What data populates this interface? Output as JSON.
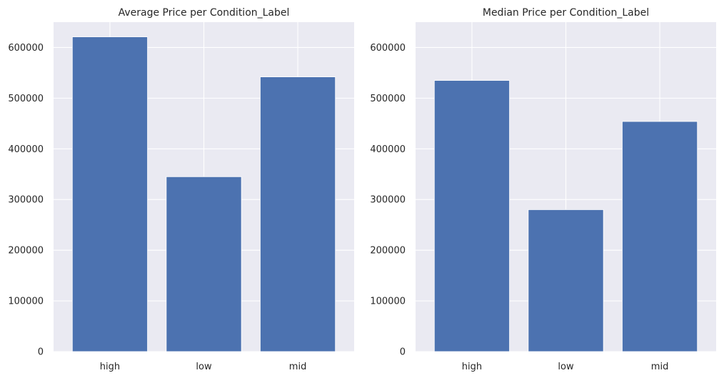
{
  "chart_data": [
    {
      "type": "bar",
      "title": "Average Price per Condition_Label",
      "categories": [
        "high",
        "low",
        "mid"
      ],
      "values": [
        621000,
        345000,
        542000
      ],
      "ylim": [
        0,
        650000
      ],
      "yticks": [
        0,
        100000,
        200000,
        300000,
        400000,
        500000,
        600000
      ],
      "ytick_labels": [
        "0",
        "100000",
        "200000",
        "300000",
        "400000",
        "500000",
        "600000"
      ],
      "grid": true,
      "bar_color": "#4c72b0",
      "background_color": "#eaeaf2"
    },
    {
      "type": "bar",
      "title": "Median Price per Condition_Label",
      "categories": [
        "high",
        "low",
        "mid"
      ],
      "values": [
        535000,
        280000,
        454000
      ],
      "ylim": [
        0,
        650000
      ],
      "yticks": [
        0,
        100000,
        200000,
        300000,
        400000,
        500000,
        600000
      ],
      "ytick_labels": [
        "0",
        "100000",
        "200000",
        "300000",
        "400000",
        "500000",
        "600000"
      ],
      "grid": true,
      "bar_color": "#4c72b0",
      "background_color": "#eaeaf2"
    }
  ]
}
